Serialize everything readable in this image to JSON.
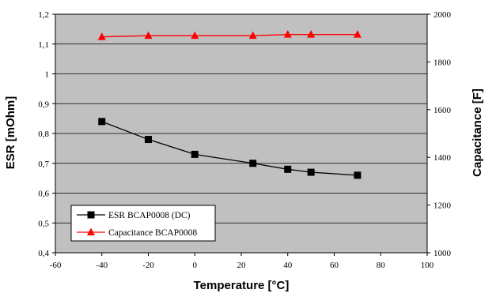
{
  "chart_data": {
    "type": "line",
    "title": "",
    "xlabel": "Temperature [°C]",
    "ylabel": "ESR [mOhm]",
    "y2label": "Capacitance [F]",
    "xlim": [
      -60,
      100
    ],
    "ylim": [
      0.4,
      1.2
    ],
    "y2lim": [
      1000,
      2000
    ],
    "x_ticks": [
      "-60",
      "-40",
      "-20",
      "0",
      "20",
      "40",
      "60",
      "80",
      "100"
    ],
    "x_tick_values": [
      -60,
      -40,
      -20,
      0,
      20,
      40,
      60,
      80,
      100
    ],
    "y_ticks": [
      "0,4",
      "0,5",
      "0,6",
      "0,7",
      "0,8",
      "0,9",
      "1",
      "1,1",
      "1,2"
    ],
    "y_tick_values": [
      0.4,
      0.5,
      0.6,
      0.7,
      0.8,
      0.9,
      1.0,
      1.1,
      1.2
    ],
    "y2_ticks": [
      "1000",
      "1200",
      "1400",
      "1600",
      "1800",
      "2000"
    ],
    "y2_tick_values": [
      1000,
      1200,
      1400,
      1600,
      1800,
      2000
    ],
    "grid": true,
    "plot_background": "#c0c0c0",
    "legend_position": "bottom-left",
    "series": [
      {
        "name": "ESR BCAP0008 (DC)",
        "axis": "left",
        "color": "#000000",
        "marker": "square",
        "x": [
          -40,
          -20,
          0,
          25,
          40,
          50,
          70
        ],
        "y": [
          0.84,
          0.78,
          0.73,
          0.7,
          0.68,
          0.67,
          0.66
        ]
      },
      {
        "name": "Capacitance BCAP0008",
        "axis": "right",
        "color": "#ff0000",
        "marker": "triangle",
        "x": [
          -40,
          -20,
          0,
          25,
          40,
          50,
          70
        ],
        "y": [
          1905,
          1910,
          1910,
          1910,
          1915,
          1915,
          1915
        ]
      }
    ]
  }
}
